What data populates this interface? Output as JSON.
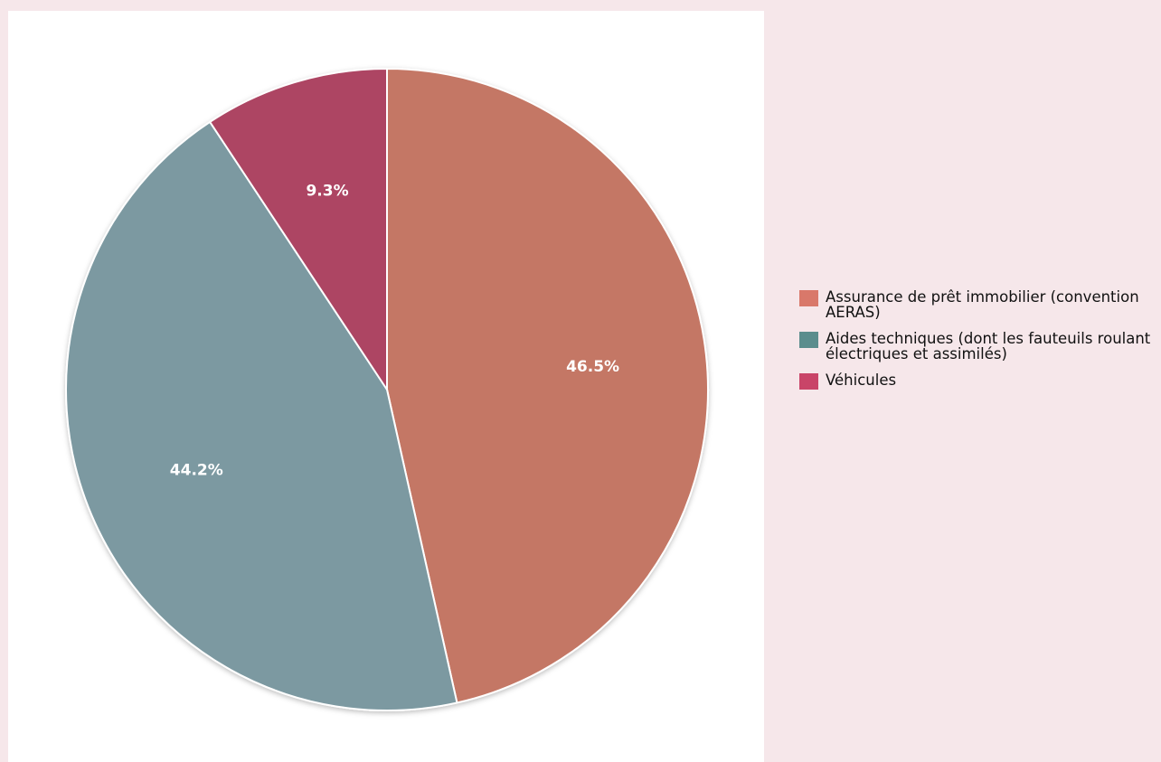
{
  "chart_data": {
    "type": "pie",
    "title": "",
    "categories": [
      "Assurance de prêt immobilier (convention AERAS)",
      "Aides techniques (dont les fauteuils roulant électriques et assimilés)",
      "Véhicules"
    ],
    "values": [
      46.5,
      44.2,
      9.3
    ],
    "value_labels": [
      "46.5%",
      "44.2%",
      "9.3%"
    ],
    "slice_colors": [
      "#c47765",
      "#7c99a1",
      "#ad4563"
    ],
    "legend_colors": [
      "#d9786a",
      "#5b8d8d",
      "#c94468"
    ],
    "legend_placement": "right"
  },
  "legend": {
    "items": [
      {
        "label": "Assurance de prêt immobilier (convention AERAS)"
      },
      {
        "label": "Aides techniques (dont les fauteuils roulant électriques et assimilés)"
      },
      {
        "label": "Véhicules"
      }
    ]
  },
  "colors": {
    "page_background": "#f6e7ea",
    "panel_background": "#ffffff",
    "slice_stroke": "#ffffff"
  }
}
